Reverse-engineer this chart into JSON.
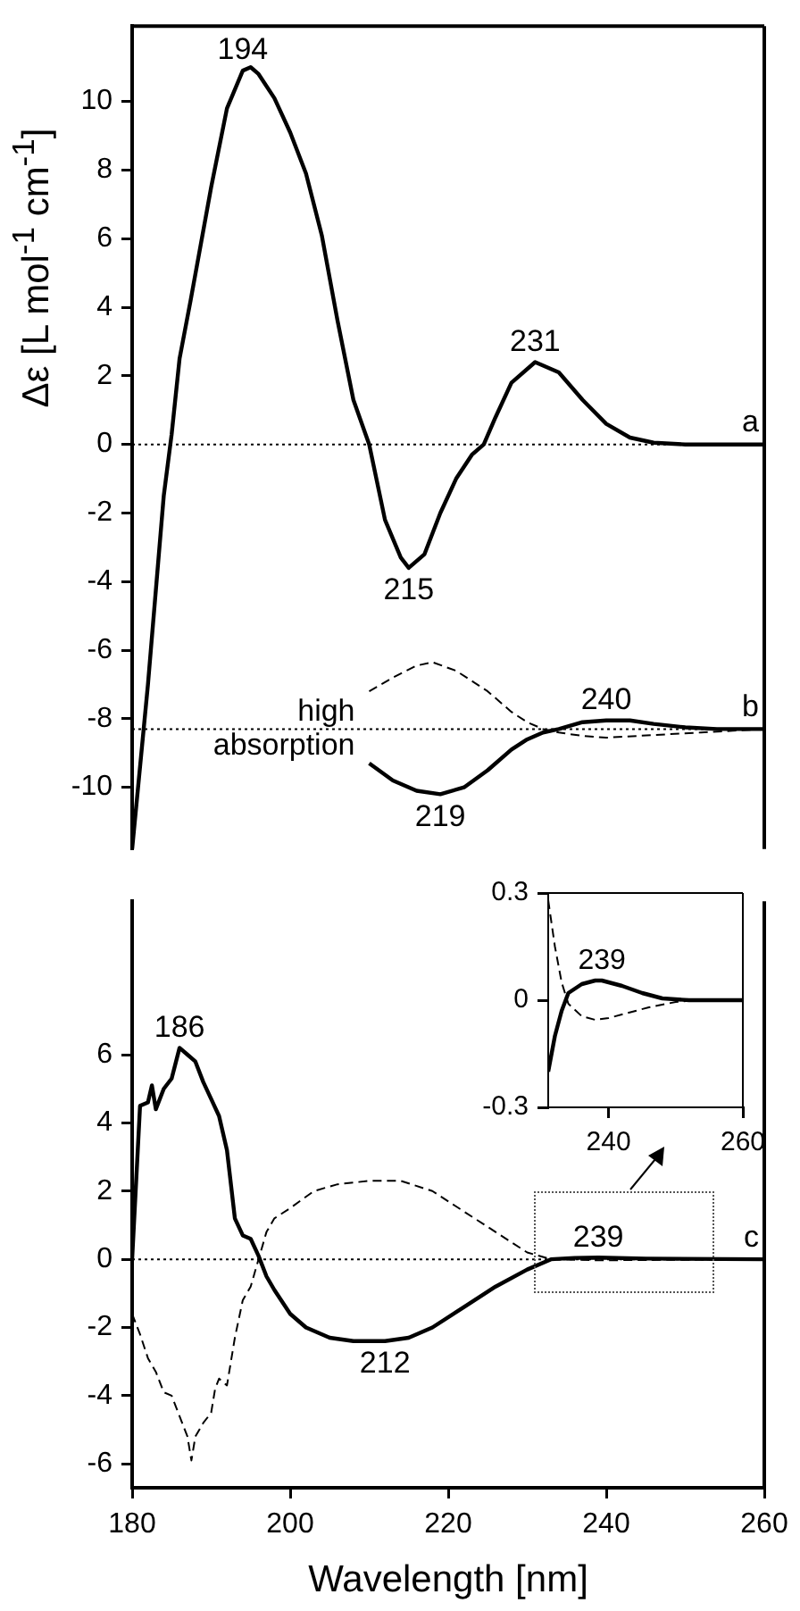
{
  "chart_data": [
    {
      "type": "line",
      "ylabel": "Δε [L mol$^{-1}$ cm$^{-1}$]",
      "xlim": [
        180,
        260
      ],
      "ylim": [
        -11.8,
        12.2
      ],
      "yticks": [
        -10,
        -8,
        -6,
        -4,
        -2,
        0,
        2,
        4,
        6,
        8,
        10
      ],
      "tick_labels": "y",
      "grid": false,
      "series": [
        {
          "color": "#000000",
          "line_style": "solid",
          "x": [
            180,
            182,
            184,
            185,
            186,
            187.4,
            190,
            192,
            194,
            195,
            196,
            198,
            200,
            202,
            204,
            206,
            208,
            210,
            212,
            214,
            215,
            217,
            219,
            221,
            223,
            224.5,
            226,
            228,
            231,
            234,
            237,
            240,
            243,
            246,
            250,
            260
          ],
          "values": [
            -11.8,
            -7,
            -1.5,
            0.3,
            2.5,
            4.2,
            7.5,
            9.8,
            10.9,
            11.0,
            10.8,
            10.1,
            9.1,
            7.9,
            6.1,
            3.6,
            1.3,
            0,
            -2.2,
            -3.3,
            -3.6,
            -3.2,
            -2.0,
            -1.0,
            -0.3,
            0,
            0.8,
            1.8,
            2.4,
            2.1,
            1.3,
            0.6,
            0.2,
            0.05,
            0,
            0
          ]
        },
        {
          "color": "#000000",
          "line_style": "solid",
          "x": [
            210,
            213,
            216,
            219,
            222,
            225,
            228,
            230,
            232,
            234,
            237,
            240,
            243,
            246,
            250,
            254,
            260
          ],
          "values": [
            -9.3,
            -9.8,
            -10.1,
            -10.2,
            -10.0,
            -9.5,
            -8.9,
            -8.6,
            -8.4,
            -8.3,
            -8.1,
            -8.05,
            -8.05,
            -8.15,
            -8.25,
            -8.3,
            -8.3
          ]
        },
        {
          "color": "#000000",
          "line_style": "dashed",
          "x": [
            210,
            213,
            216,
            218,
            221,
            225,
            228,
            230,
            232,
            234,
            237,
            240,
            244,
            248,
            252,
            256,
            260
          ],
          "values": [
            -7.2,
            -6.8,
            -6.45,
            -6.35,
            -6.6,
            -7.2,
            -7.8,
            -8.1,
            -8.3,
            -8.4,
            -8.5,
            -8.55,
            -8.5,
            -8.45,
            -8.4,
            -8.35,
            -8.3
          ]
        }
      ],
      "ref_lines": [
        {
          "axis": "y",
          "value": 0,
          "line_style": "dotted"
        },
        {
          "axis": "y",
          "value": -8.3,
          "line_style": "dotted"
        }
      ],
      "annotations": [
        {
          "text": "194",
          "x": 194,
          "y": 10.9
        },
        {
          "text": "231",
          "x": 231,
          "y": 2.4
        },
        {
          "text": "215",
          "x": 215,
          "y": -3.6
        },
        {
          "text": "a",
          "x": 260,
          "y": 0
        },
        {
          "text": "b",
          "x": 260,
          "y": -8.3
        },
        {
          "text": "240",
          "x": 240,
          "y": -8.05
        },
        {
          "text": "219",
          "x": 219,
          "y": -10.2
        },
        {
          "text": "high absorption",
          "x": 210,
          "y": -8.3
        }
      ]
    },
    {
      "type": "line",
      "xlabel": "Wavelength [nm]",
      "xlim": [
        180,
        260
      ],
      "ylim": [
        -6.7,
        10.5
      ],
      "xticks": [
        180,
        200,
        220,
        240,
        260
      ],
      "yticks": [
        -6,
        -4,
        -2,
        0,
        2,
        4,
        6
      ],
      "grid": false,
      "series": [
        {
          "color": "#000000",
          "line_style": "solid",
          "x": [
            180,
            181,
            182,
            182.5,
            183,
            184,
            185,
            186,
            187,
            188,
            189,
            190,
            191,
            192,
            193,
            194,
            195,
            196,
            197,
            198,
            200,
            202,
            205,
            208,
            212,
            215,
            218,
            222,
            226,
            230,
            233,
            236,
            239,
            245,
            260
          ],
          "values": [
            0,
            4.5,
            4.6,
            5.1,
            4.4,
            5.0,
            5.3,
            6.2,
            6.0,
            5.8,
            5.2,
            4.7,
            4.2,
            3.2,
            1.2,
            0.7,
            0.6,
            0.1,
            -0.5,
            -0.9,
            -1.6,
            -2.0,
            -2.3,
            -2.4,
            -2.4,
            -2.3,
            -2.0,
            -1.4,
            -0.8,
            -0.3,
            0,
            0.04,
            0.05,
            0.02,
            0
          ]
        },
        {
          "color": "#000000",
          "line_style": "dashed",
          "x": [
            180,
            181,
            182,
            183,
            184,
            185,
            186,
            187,
            187.5,
            188,
            189,
            190,
            190.5,
            191,
            192,
            193,
            194,
            195,
            196,
            197,
            198,
            200,
            203,
            206,
            210,
            214,
            218,
            222,
            226,
            230,
            233,
            239,
            245,
            260
          ],
          "values": [
            -1.6,
            -2.2,
            -2.9,
            -3.3,
            -3.9,
            -4.0,
            -4.6,
            -5.2,
            -5.9,
            -5.2,
            -4.8,
            -4.5,
            -3.8,
            -3.5,
            -3.7,
            -2.3,
            -1.2,
            -0.8,
            0,
            0.8,
            1.2,
            1.5,
            2.0,
            2.2,
            2.3,
            2.3,
            2.0,
            1.4,
            0.8,
            0.2,
            0,
            -0.03,
            -0.02,
            0
          ]
        }
      ],
      "ref_lines": [
        {
          "axis": "y",
          "value": 0,
          "line_style": "dotted"
        }
      ],
      "annotations": [
        {
          "text": "186",
          "x": 186,
          "y": 6.2
        },
        {
          "text": "212",
          "x": 212,
          "y": -2.4
        },
        {
          "text": "239",
          "x": 239,
          "y": 0.05
        },
        {
          "text": "c",
          "x": 260,
          "y": 0
        }
      ]
    },
    {
      "type": "line",
      "xlim": [
        231,
        260
      ],
      "ylim": [
        -0.3,
        0.3
      ],
      "xticks": [
        240,
        260
      ],
      "yticks": [
        -0.3,
        0,
        0.3
      ],
      "grid": false,
      "series": [
        {
          "color": "#000000",
          "line_style": "solid",
          "x": [
            231,
            232,
            233,
            234,
            236,
            238,
            239,
            242,
            245,
            248,
            252,
            260
          ],
          "values": [
            -0.2,
            -0.1,
            -0.03,
            0.02,
            0.045,
            0.055,
            0.055,
            0.04,
            0.02,
            0.005,
            0,
            0
          ]
        },
        {
          "color": "#000000",
          "line_style": "dashed",
          "x": [
            231,
            232,
            233,
            234,
            236,
            238,
            240,
            243,
            246,
            250,
            253,
            260
          ],
          "values": [
            0.28,
            0.15,
            0.05,
            -0.01,
            -0.045,
            -0.055,
            -0.05,
            -0.035,
            -0.02,
            -0.005,
            0,
            0
          ]
        }
      ],
      "annotations": [
        {
          "text": "239",
          "x": 239,
          "y": 0.055
        }
      ]
    }
  ]
}
